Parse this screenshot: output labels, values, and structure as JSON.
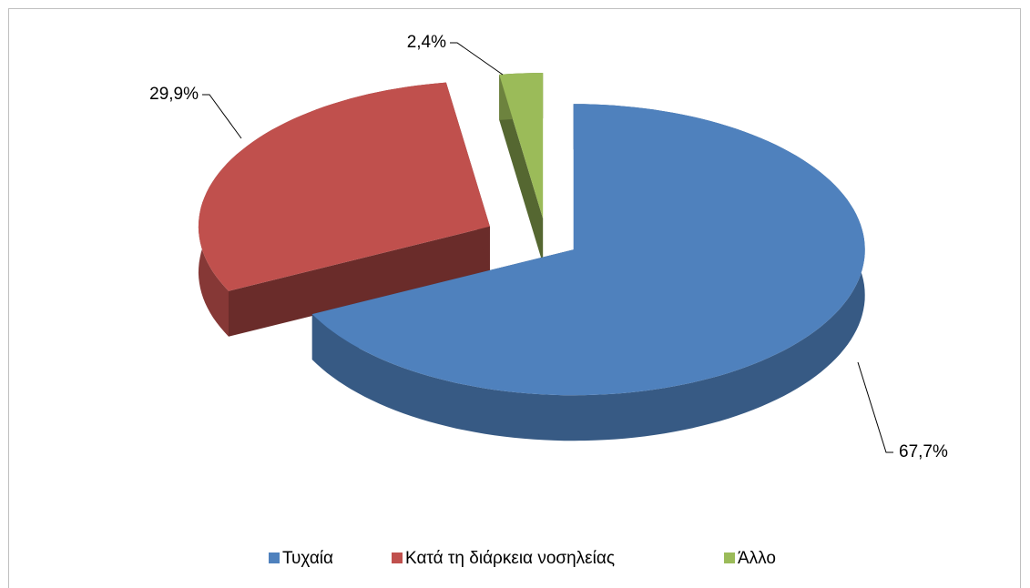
{
  "chart_data": {
    "type": "pie",
    "categories": [
      "Τυχαία",
      "Κατά τη διάρκεια νοσηλείας",
      "Άλλο"
    ],
    "values": [
      67.7,
      29.9,
      2.4
    ],
    "value_labels": [
      "67,7%",
      "29,9%",
      "2,4%"
    ],
    "colors": [
      "#4f81bd",
      "#c0504d",
      "#9bbb59"
    ],
    "legend": "bottom"
  }
}
